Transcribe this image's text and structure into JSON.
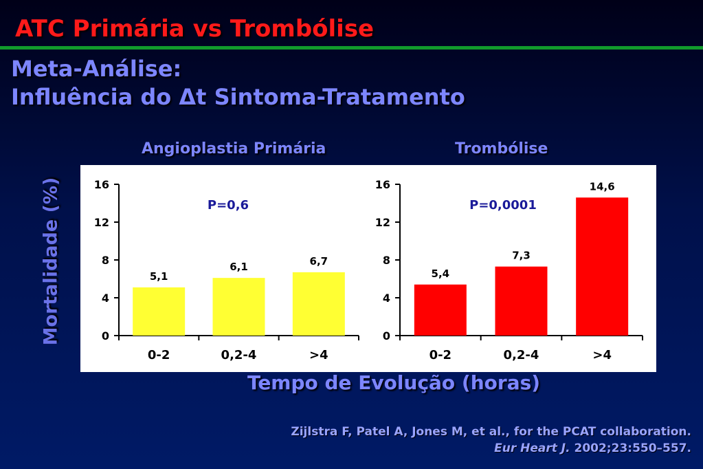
{
  "slide": {
    "title": "ATC Primária vs Trombólise",
    "subtitle_line1": "Meta-Análise:",
    "subtitle_line2": "Influência do Δt Sintoma-Tratamento",
    "ylabel": "Mortalidade (%)",
    "xlabel": "Tempo de Evolução (horas)",
    "source_line1": "Zijlstra F, Patel A, Jones M, et al., for the PCAT collaboration.",
    "source_journal": "Eur Heart J.",
    "source_ref": " 2002;23:550–557."
  },
  "colors": {
    "title": "#ff1a1a",
    "accent": "#7d86ff",
    "rule": "#119a2c",
    "bar_primary": "#ffff33",
    "bar_thrombolysis": "#ff0000"
  },
  "chart_data": [
    {
      "type": "bar",
      "title": "Angioplastia Primária",
      "categories": [
        "0-2",
        "0,2-4",
        ">4"
      ],
      "values": [
        5.1,
        6.1,
        6.7
      ],
      "value_labels": [
        "5,1",
        "6,1",
        "6,7"
      ],
      "annotation": "P=0,6",
      "ylim": [
        0,
        16
      ],
      "yticks": [
        0,
        4,
        8,
        12,
        16
      ],
      "ytick_labels": [
        "0",
        "4",
        "8",
        "12",
        "16"
      ],
      "color": "#ffff33"
    },
    {
      "type": "bar",
      "title": "Trombólise",
      "categories": [
        "0-2",
        "0,2-4",
        ">4"
      ],
      "values": [
        5.4,
        7.3,
        14.6
      ],
      "value_labels": [
        "5,4",
        "7,3",
        "14,6"
      ],
      "annotation": "P=0,0001",
      "ylim": [
        0,
        16
      ],
      "yticks": [
        0,
        4,
        8,
        12,
        16
      ],
      "ytick_labels": [
        "0",
        "4",
        "8",
        "12",
        "16"
      ],
      "color": "#ff0000"
    }
  ]
}
